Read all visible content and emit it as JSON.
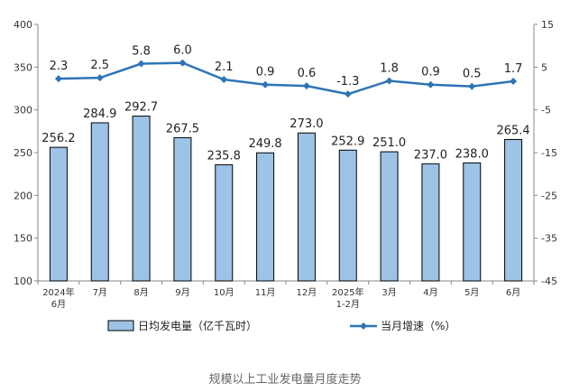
{
  "chart_data": {
    "type": "bar+line",
    "categories": [
      "2024年\n6月",
      "7月",
      "8月",
      "9月",
      "10月",
      "11月",
      "12月",
      "2025年\n1-2月",
      "3月",
      "4月",
      "5月",
      "6月"
    ],
    "series": [
      {
        "name": "日均发电量（亿千瓦时）",
        "type": "bar",
        "axis": "left",
        "values": [
          256.2,
          284.9,
          292.7,
          267.5,
          235.8,
          249.8,
          273.0,
          252.9,
          251.0,
          237.0,
          238.0,
          265.4
        ],
        "labels": [
          "256.2",
          "284.9",
          "292.7",
          "267.5",
          "235.8",
          "249.8",
          "273.0",
          "252.9",
          "251.0",
          "237.0",
          "238.0",
          "265.4"
        ]
      },
      {
        "name": "当月增速（%）",
        "type": "line",
        "axis": "right",
        "values": [
          2.3,
          2.5,
          5.8,
          6.0,
          2.1,
          0.9,
          0.6,
          -1.3,
          1.8,
          0.9,
          0.5,
          1.7
        ],
        "labels": [
          "2.3",
          "2.5",
          "5.8",
          "6.0",
          "2.1",
          "0.9",
          "0.6",
          "-1.3",
          "1.8",
          "0.9",
          "0.5",
          "1.7"
        ]
      }
    ],
    "y_left": {
      "range": [
        100,
        400
      ],
      "ticks": [
        "100",
        "150",
        "200",
        "250",
        "300",
        "350",
        "400"
      ]
    },
    "y_right": {
      "range": [
        -45,
        15
      ],
      "ticks": [
        "-45",
        "-35",
        "-25",
        "-15",
        "-5",
        "5",
        "15"
      ]
    },
    "grid": false,
    "legend_position": "bottom",
    "caption": "规模以上工业发电量月度走势"
  },
  "colors": {
    "bar_fill": "#9DC3E6",
    "bar_stroke": "#000000",
    "line": "#2E75B6",
    "axis": "#888888"
  }
}
